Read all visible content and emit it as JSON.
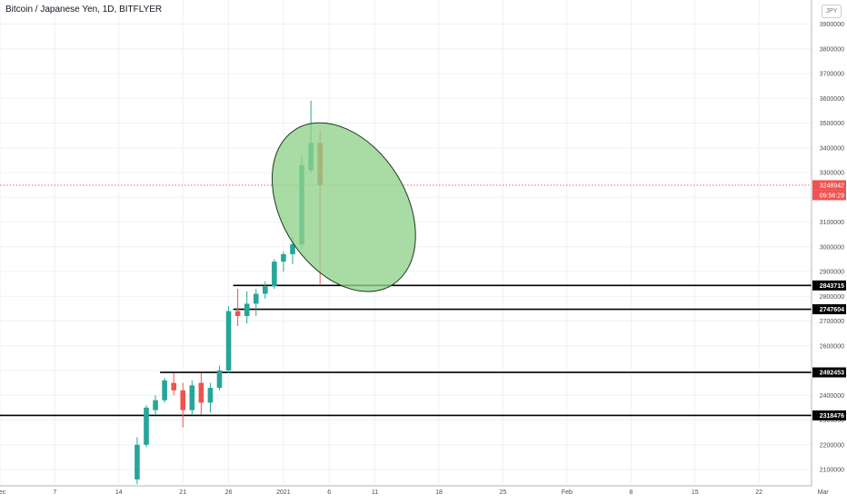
{
  "header": {
    "title": "Bitcoin / Japanese Yen, 1D, BITFLYER",
    "currency_badge": "JPY"
  },
  "price_tag": {
    "price": "3248942",
    "countdown": "09:56:29"
  },
  "colors": {
    "up": "#26a69a",
    "down": "#ef5350",
    "grid": "#eef1f5",
    "level_line": "#000000",
    "ellipse_fill": "#8fd28a",
    "ellipse_stroke": "#1b3a1b",
    "current_price": "#ef5350"
  },
  "chart_data": {
    "type": "candlestick",
    "symbol": "Bitcoin / Japanese Yen",
    "interval": "1D",
    "exchange": "BITFLYER",
    "currency": "JPY",
    "y_ticks": [
      2100000,
      2200000,
      2300000,
      2400000,
      2500000,
      2600000,
      2700000,
      2800000,
      2900000,
      3000000,
      3100000,
      3200000,
      3300000,
      3400000,
      3500000,
      3600000,
      3700000,
      3800000,
      3900000
    ],
    "x_ticks": [
      {
        "label": "Dec",
        "day": 0
      },
      {
        "label": "7",
        "day": 6
      },
      {
        "label": "14",
        "day": 13
      },
      {
        "label": "21",
        "day": 20
      },
      {
        "label": "26",
        "day": 25
      },
      {
        "label": "2021",
        "day": 31
      },
      {
        "label": "6",
        "day": 36
      },
      {
        "label": "11",
        "day": 41
      },
      {
        "label": "18",
        "day": 48
      },
      {
        "label": "25",
        "day": 55
      },
      {
        "label": "Feb",
        "day": 62
      },
      {
        "label": "8",
        "day": 69
      },
      {
        "label": "15",
        "day": 76
      },
      {
        "label": "22",
        "day": 83
      },
      {
        "label": "Mar",
        "day": 90
      }
    ],
    "candles": [
      {
        "day": 15,
        "o": 2060000,
        "h": 2230000,
        "l": 2040000,
        "c": 2200000
      },
      {
        "day": 16,
        "o": 2200000,
        "h": 2360000,
        "l": 2190000,
        "c": 2350000
      },
      {
        "day": 17,
        "o": 2340000,
        "h": 2400000,
        "l": 2320000,
        "c": 2380000
      },
      {
        "day": 18,
        "o": 2380000,
        "h": 2470000,
        "l": 2370000,
        "c": 2460000
      },
      {
        "day": 19,
        "o": 2450000,
        "h": 2490000,
        "l": 2400000,
        "c": 2420000
      },
      {
        "day": 20,
        "o": 2420000,
        "h": 2450000,
        "l": 2270000,
        "c": 2340000
      },
      {
        "day": 21,
        "o": 2340000,
        "h": 2460000,
        "l": 2320000,
        "c": 2440000
      },
      {
        "day": 22,
        "o": 2450000,
        "h": 2490000,
        "l": 2320000,
        "c": 2370000
      },
      {
        "day": 23,
        "o": 2370000,
        "h": 2450000,
        "l": 2330000,
        "c": 2430000
      },
      {
        "day": 24,
        "o": 2430000,
        "h": 2520000,
        "l": 2420000,
        "c": 2500000
      },
      {
        "day": 25,
        "o": 2500000,
        "h": 2760000,
        "l": 2490000,
        "c": 2740000
      },
      {
        "day": 26,
        "o": 2740000,
        "h": 2830000,
        "l": 2680000,
        "c": 2720000
      },
      {
        "day": 27,
        "o": 2720000,
        "h": 2820000,
        "l": 2690000,
        "c": 2770000
      },
      {
        "day": 28,
        "o": 2770000,
        "h": 2830000,
        "l": 2720000,
        "c": 2810000
      },
      {
        "day": 29,
        "o": 2810000,
        "h": 2860000,
        "l": 2790000,
        "c": 2840000
      },
      {
        "day": 30,
        "o": 2840000,
        "h": 2950000,
        "l": 2830000,
        "c": 2940000
      },
      {
        "day": 31,
        "o": 2940000,
        "h": 2980000,
        "l": 2900000,
        "c": 2970000
      },
      {
        "day": 32,
        "o": 2970000,
        "h": 3040000,
        "l": 2930000,
        "c": 3010000
      },
      {
        "day": 33,
        "o": 3010000,
        "h": 3370000,
        "l": 2990000,
        "c": 3330000
      },
      {
        "day": 34,
        "o": 3310000,
        "h": 3590000,
        "l": 3300000,
        "c": 3420000
      },
      {
        "day": 35,
        "o": 3420000,
        "h": 3470000,
        "l": 2850000,
        "c": 3248942
      }
    ],
    "horizontal_levels": [
      {
        "price": 2843715,
        "from_day": 25.5
      },
      {
        "price": 2747604,
        "from_day": 25.5
      },
      {
        "price": 2492453,
        "from_day": 17.5
      },
      {
        "price": 2318476,
        "from_day": 0
      }
    ],
    "current_price": 3248942,
    "annotation": {
      "type": "ellipse",
      "center_day": 37.6,
      "center_price": 3160000,
      "rx_days": 6.8,
      "ry_price": 370000,
      "angle_deg": 32
    }
  }
}
